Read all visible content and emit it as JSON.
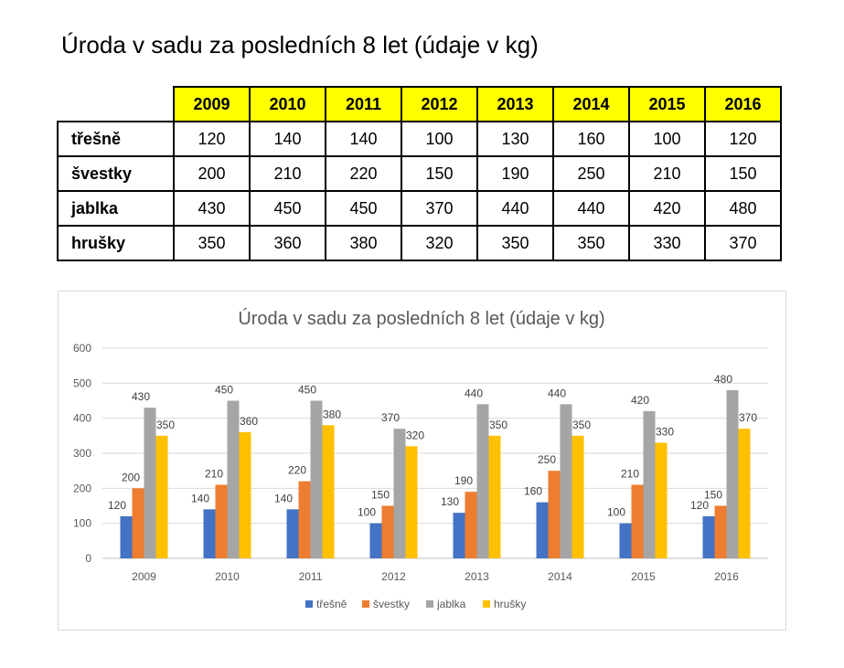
{
  "document": {
    "title": "Úroda v sadu za posledních 8 let (údaje v kg)"
  },
  "table": {
    "years": [
      "2009",
      "2010",
      "2011",
      "2012",
      "2013",
      "2014",
      "2015",
      "2016"
    ],
    "rows": [
      {
        "label": "třešně",
        "values": [
          "120",
          "140",
          "140",
          "100",
          "130",
          "160",
          "100",
          "120"
        ]
      },
      {
        "label": "švestky",
        "values": [
          "200",
          "210",
          "220",
          "150",
          "190",
          "250",
          "210",
          "150"
        ]
      },
      {
        "label": "jablka",
        "values": [
          "430",
          "450",
          "450",
          "370",
          "440",
          "440",
          "420",
          "480"
        ]
      },
      {
        "label": "hrušky",
        "values": [
          "350",
          "360",
          "380",
          "320",
          "350",
          "350",
          "330",
          "370"
        ]
      }
    ]
  },
  "chart_data": {
    "type": "bar",
    "title": "Úroda v sadu za posledních 8 let  (údaje v kg)",
    "xlabel": "",
    "ylabel": "",
    "categories": [
      "2009",
      "2010",
      "2011",
      "2012",
      "2013",
      "2014",
      "2015",
      "2016"
    ],
    "ylim": [
      0,
      600
    ],
    "yticks": [
      0,
      100,
      200,
      300,
      400,
      500,
      600
    ],
    "grid": true,
    "legend": "bottom",
    "series": [
      {
        "name": "třešně",
        "color": "#4472c4",
        "values": [
          120,
          140,
          140,
          100,
          130,
          160,
          100,
          120
        ]
      },
      {
        "name": "švestky",
        "color": "#ed7d31",
        "values": [
          200,
          210,
          220,
          150,
          190,
          250,
          210,
          150
        ]
      },
      {
        "name": "jablka",
        "color": "#a5a5a5",
        "values": [
          430,
          450,
          450,
          370,
          440,
          440,
          420,
          480
        ]
      },
      {
        "name": "hrušky",
        "color": "#ffc000",
        "values": [
          350,
          360,
          380,
          320,
          350,
          350,
          330,
          370
        ]
      }
    ]
  }
}
